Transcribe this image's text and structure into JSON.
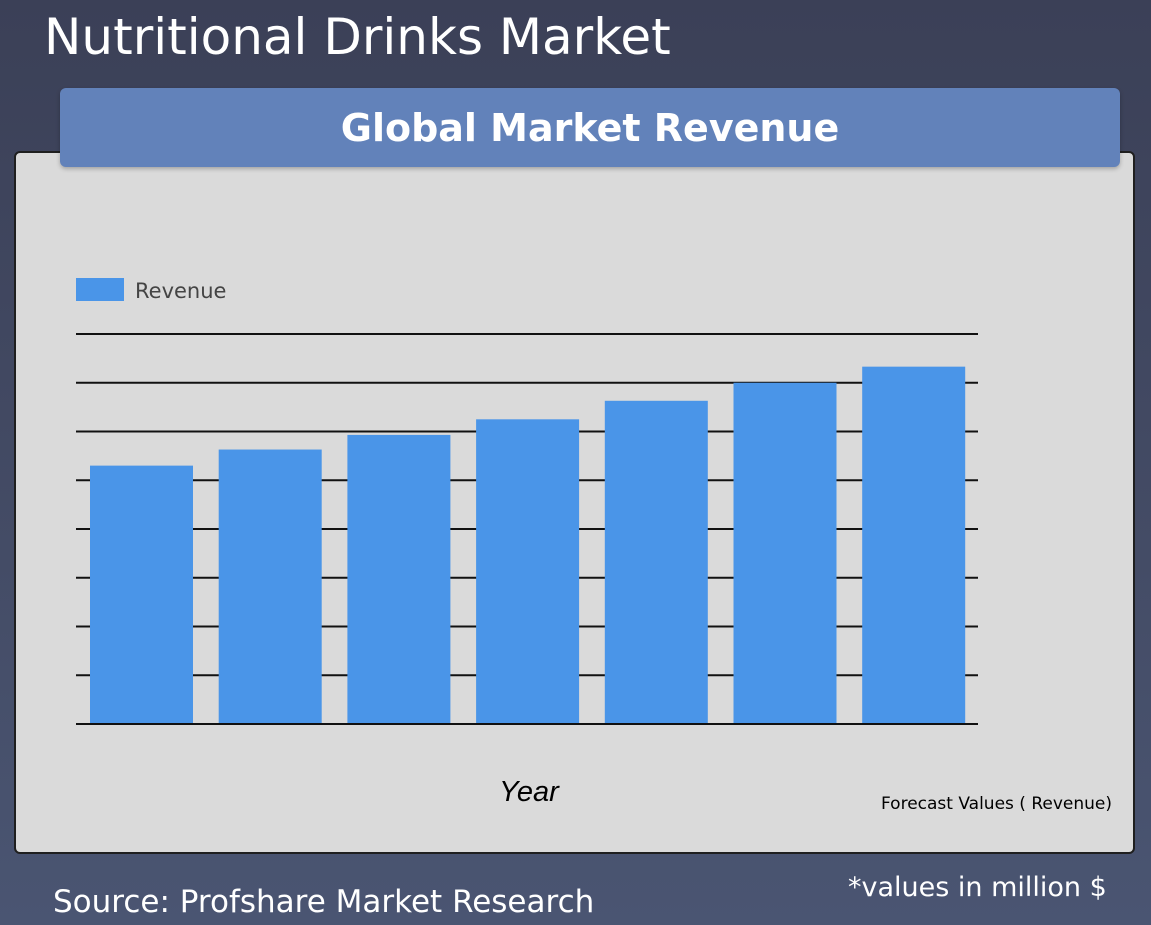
{
  "page": {
    "title": "Nutritional Drinks Market",
    "source": "Source: Profshare Market Research",
    "units_note": "*values in million $"
  },
  "colors": {
    "background": "#414862",
    "banner": "#6282ba",
    "panel": "#dadada",
    "bar": "#4a95e8",
    "gridline": "#111111"
  },
  "chart_data": {
    "type": "bar",
    "title": "Global Market Revenue",
    "xlabel": "Year",
    "ylabel": "",
    "footnote": "Forecast Values ( Revenue)",
    "legend": {
      "position": "top-left",
      "entries": [
        "Revenue"
      ]
    },
    "grid": true,
    "y_tick_labels_shown": false,
    "x_tick_labels_shown": false,
    "gridline_count": 8,
    "ylim": [
      0,
      8
    ],
    "series": [
      {
        "name": "Revenue",
        "values": [
          5.3,
          5.63,
          5.93,
          6.25,
          6.63,
          7.0,
          7.33
        ]
      }
    ]
  }
}
